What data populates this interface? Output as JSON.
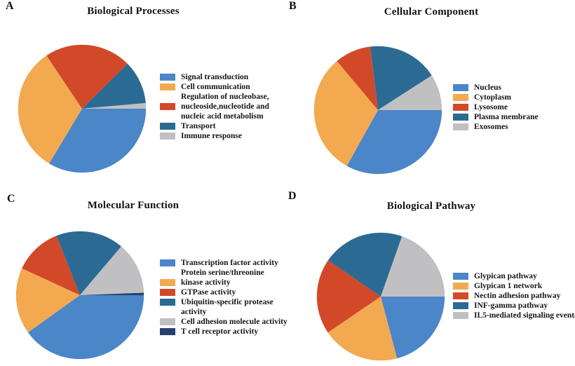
{
  "figure": {
    "background": "#ffffff",
    "text_color": "#161616"
  },
  "palette": {
    "blue": "#4A86C8",
    "orange": "#F3A950",
    "red": "#D2492A",
    "teal": "#2B6B93",
    "gray": "#C0C0C3",
    "navy": "#24406E"
  },
  "chart_data": [
    {
      "type": "pie",
      "panel": "A",
      "title": "Biological Processes",
      "legend_position": "right",
      "start_angle_deg": 0,
      "direction": "clockwise",
      "slices": [
        {
          "label": "Signal transduction",
          "percent": 33.6,
          "color": "#4A86C8",
          "legend_lines": [
            "Signal transduction"
          ],
          "swatch_line": 0
        },
        {
          "label": "Cell communication",
          "percent": 32.0,
          "color": "#F3A950",
          "legend_lines": [
            "Cell communication"
          ],
          "swatch_line": 0
        },
        {
          "label": "Regulation of nucleobase, nucleoside,nucleotide and nucleic acid metabolism",
          "percent": 22.0,
          "color": "#D2492A",
          "legend_lines": [
            "Regulation of nucleobase,",
            "nucleoside,nucleotide and",
            "nucleic acid metabolism"
          ],
          "swatch_line": 1
        },
        {
          "label": "Transport",
          "percent": 11.0,
          "color": "#2B6B93",
          "legend_lines": [
            "Transport"
          ],
          "swatch_line": 0
        },
        {
          "label": "Immune response",
          "percent": 1.4,
          "color": "#C0C0C3",
          "legend_lines": [
            "Immune response"
          ],
          "swatch_line": 0
        }
      ]
    },
    {
      "type": "pie",
      "panel": "B",
      "title": "Cellular Component",
      "legend_position": "right",
      "start_angle_deg": 0,
      "direction": "clockwise",
      "slices": [
        {
          "label": "Nucleus",
          "percent": 33.1,
          "color": "#4A86C8",
          "legend_lines": [
            "Nucleus"
          ],
          "swatch_line": 0
        },
        {
          "label": "Cytoplasm",
          "percent": 30.8,
          "color": "#F3A950",
          "legend_lines": [
            "Cytoplasm"
          ],
          "swatch_line": 0
        },
        {
          "label": "Lysosome",
          "percent": 9.2,
          "color": "#D2492A",
          "legend_lines": [
            "Lysosome"
          ],
          "swatch_line": 0
        },
        {
          "label": "Plasma membrane",
          "percent": 17.8,
          "color": "#2B6B93",
          "legend_lines": [
            "Plasma membrane"
          ],
          "swatch_line": 0
        },
        {
          "label": "Exosomes",
          "percent": 9.1,
          "color": "#C0C0C3",
          "legend_lines": [
            "Exosomes"
          ],
          "swatch_line": 0
        }
      ]
    },
    {
      "type": "pie",
      "panel": "C",
      "title": "Molecular Function",
      "legend_position": "right",
      "start_angle_deg": 0,
      "direction": "clockwise",
      "slices": [
        {
          "label": "Transcription factor activity",
          "percent": 40.1,
          "color": "#4A86C8",
          "legend_lines": [
            "Transcription factor activity"
          ],
          "swatch_line": 0
        },
        {
          "label": "Protein serine/threonine kinase activity",
          "percent": 16.8,
          "color": "#F3A950",
          "legend_lines": [
            "Protein serine/threonine",
            "kinase activity"
          ],
          "swatch_line": 1
        },
        {
          "label": "GTPase activity",
          "percent": 12.1,
          "color": "#D2492A",
          "legend_lines": [
            "GTPase activity"
          ],
          "swatch_line": 0
        },
        {
          "label": "Ubiquitin-specific protease activity",
          "percent": 17.2,
          "color": "#2B6B93",
          "legend_lines": [
            "Ubiquitin-specific protease",
            "activity"
          ],
          "swatch_line": 0
        },
        {
          "label": "Cell adhesion molecule activity",
          "percent": 13.2,
          "color": "#C0C0C3",
          "legend_lines": [
            "Cell adhesion molecule activity"
          ],
          "swatch_line": 0
        },
        {
          "label": "T cell receptor activity",
          "percent": 0.6,
          "color": "#24406E",
          "legend_lines": [
            "T cell receptor activity"
          ],
          "swatch_line": 0
        }
      ]
    },
    {
      "type": "pie",
      "panel": "D",
      "title": "Biological Pathway",
      "legend_position": "right",
      "start_angle_deg": 0,
      "direction": "clockwise",
      "slices": [
        {
          "label": "Glypican pathway",
          "percent": 20.9,
          "color": "#4A86C8",
          "legend_lines": [
            "Glypican pathway"
          ],
          "swatch_line": 0
        },
        {
          "label": "Glypican 1 network",
          "percent": 19.6,
          "color": "#F3A950",
          "legend_lines": [
            "Glypican 1 network"
          ],
          "swatch_line": 0
        },
        {
          "label": "Nectin adhesion pathway",
          "percent": 19.1,
          "color": "#D2492A",
          "legend_lines": [
            "Nectin adhesion pathway"
          ],
          "swatch_line": 0
        },
        {
          "label": "INF-gamma pathway",
          "percent": 20.8,
          "color": "#2B6B93",
          "legend_lines": [
            "INF-gamma pathway"
          ],
          "swatch_line": 0
        },
        {
          "label": "IL5-mediated signaling events",
          "percent": 19.6,
          "color": "#C0C0C3",
          "legend_lines": [
            "IL5-mediated signaling events"
          ],
          "swatch_line": 0
        }
      ]
    }
  ]
}
